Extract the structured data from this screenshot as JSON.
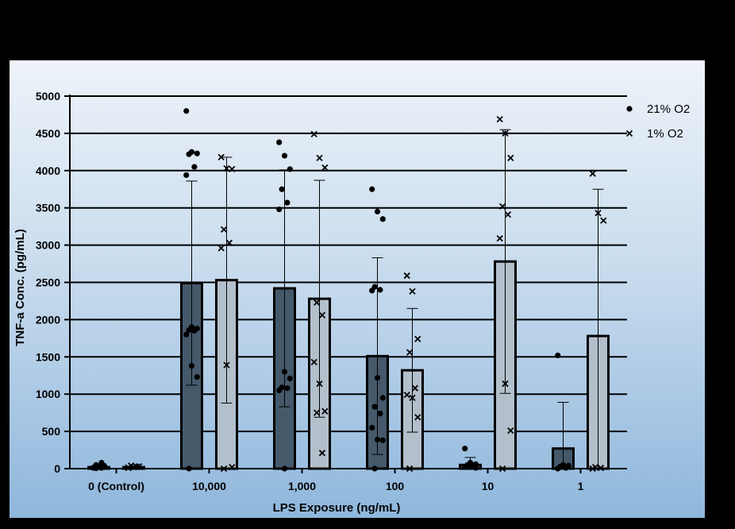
{
  "chart_data": {
    "type": "bar",
    "xlabel": "LPS Exposure (ng/mL)",
    "ylabel": "TNF-a Conc. (pg/mL)",
    "ylim": [
      0,
      5000
    ],
    "yticks": [
      "0",
      "500",
      "1000",
      "1500",
      "2000",
      "2500",
      "3000",
      "3500",
      "4000",
      "4500",
      "5000"
    ],
    "grid": "horizontal",
    "legend_placement": "top-right",
    "categories": [
      "0 (Control)",
      "10,000",
      "1,000",
      "100",
      "10",
      "1"
    ],
    "series": [
      {
        "name": "21% O2",
        "marker": "dot",
        "bar_color": "#45596b",
        "values": [
          20,
          2490,
          2420,
          1510,
          50,
          270
        ],
        "error": [
          10,
          1370,
          1590,
          1320,
          100,
          620
        ],
        "points": [
          [
            10,
            20,
            30,
            50,
            80,
            15,
            25,
            40,
            5,
            10
          ],
          [
            4800,
            4250,
            4230,
            4220,
            4050,
            3940,
            1900,
            1880,
            1860,
            1850,
            1800,
            1380,
            1230,
            0
          ],
          [
            4380,
            4200,
            4020,
            3750,
            3570,
            3480,
            1300,
            1210,
            1090,
            1080,
            1050,
            0
          ],
          [
            3750,
            3450,
            3350,
            2440,
            2400,
            2390,
            1220,
            950,
            830,
            740,
            550,
            390,
            380,
            0
          ],
          [
            270,
            80,
            60,
            50,
            40,
            30,
            20,
            10
          ],
          [
            1520,
            50,
            40,
            30,
            10,
            0
          ]
        ]
      },
      {
        "name": "1% O2",
        "marker": "x",
        "bar_color": "#b3c0cc",
        "values": [
          20,
          2530,
          2280,
          1320,
          2780,
          1780
        ],
        "error": [
          10,
          1650,
          1590,
          830,
          1770,
          1970
        ],
        "points": [
          [
            10,
            20,
            30,
            40,
            25,
            15
          ],
          [
            4180,
            4030,
            4020,
            3210,
            3030,
            2960,
            1390,
            20,
            0
          ],
          [
            4490,
            4170,
            4040,
            2230,
            2060,
            1430,
            1140,
            770,
            750,
            210
          ],
          [
            2590,
            2380,
            1740,
            1560,
            1080,
            990,
            950,
            690,
            0
          ],
          [
            4690,
            4500,
            4170,
            3520,
            3410,
            3090,
            1140,
            510,
            0
          ],
          [
            3960,
            3430,
            3330,
            20,
            10,
            0
          ]
        ]
      }
    ]
  }
}
